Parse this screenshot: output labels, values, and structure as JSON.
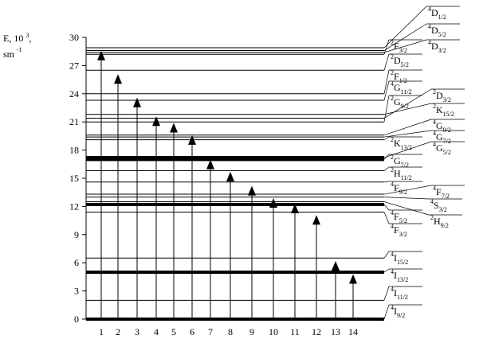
{
  "y_axis": {
    "label": {
      "prefix": "E, 10",
      "exp": "3",
      "sep": ",",
      "unit": "sm",
      "unit_exp": "-1"
    },
    "ylim": [
      0,
      30
    ],
    "yticks": [
      0,
      3,
      6,
      9,
      12,
      15,
      18,
      21,
      24,
      27,
      30
    ]
  },
  "transitions": [
    {
      "label": "1",
      "energy": 28.5
    },
    {
      "label": "2",
      "energy": 26.0
    },
    {
      "label": "3",
      "energy": 23.5
    },
    {
      "label": "4",
      "energy": 21.5
    },
    {
      "label": "5",
      "energy": 20.8
    },
    {
      "label": "6",
      "energy": 19.5
    },
    {
      "label": "7",
      "energy": 16.9
    },
    {
      "label": "8",
      "energy": 15.6
    },
    {
      "label": "9",
      "energy": 14.1
    },
    {
      "label": "10",
      "energy": 12.8
    },
    {
      "label": "11",
      "energy": 12.2
    },
    {
      "label": "12",
      "energy": 11.0
    },
    {
      "label": "13",
      "energy": 6.1
    },
    {
      "label": "14",
      "energy": 4.7
    }
  ],
  "levels": [
    {
      "mult": "4",
      "L": "I",
      "J": "9/2",
      "energy": 0,
      "thick": true
    },
    {
      "mult": "4",
      "L": "I",
      "J": "11/2",
      "energy": 2.0,
      "thick": false
    },
    {
      "mult": "4",
      "L": "I",
      "J": "13/2",
      "energy": 5.0,
      "thick": true
    },
    {
      "mult": "4",
      "L": "I",
      "J": "15/2",
      "energy": 6.5,
      "thick": false
    },
    {
      "mult": "4",
      "L": "F",
      "J": "3/2",
      "energy": 11.4,
      "thick": false
    },
    {
      "mult": "4",
      "L": "F",
      "J": "5/2",
      "energy": 12.2,
      "thick": true
    },
    {
      "mult": "2",
      "L": "H",
      "J": "9/2",
      "energy": 12.5,
      "thick": false
    },
    {
      "mult": "4",
      "L": "S",
      "J": "3/2",
      "energy": 13.0,
      "thick": false
    },
    {
      "mult": "4",
      "L": "F",
      "J": "7/2",
      "energy": 13.3,
      "thick": false
    },
    {
      "mult": "4",
      "L": "F",
      "J": "9/2",
      "energy": 14.6,
      "thick": false
    },
    {
      "mult": "2",
      "L": "H",
      "J": "11/2",
      "energy": 15.8,
      "thick": false
    },
    {
      "mult": "2",
      "L": "G",
      "J": "7/2",
      "energy": 17.0,
      "thick": true
    },
    {
      "mult": "4",
      "L": "G",
      "J": "5/2",
      "energy": 17.2,
      "thick": true
    },
    {
      "mult": "2",
      "L": "K",
      "J": "13/2",
      "energy": 19.1,
      "thick": false
    },
    {
      "mult": "4",
      "L": "G",
      "J": "7/2",
      "energy": 19.4,
      "thick": false
    },
    {
      "mult": "4",
      "L": "G",
      "J": "9/2",
      "energy": 19.6,
      "thick": false
    },
    {
      "mult": "2",
      "L": "G",
      "J": "9/2",
      "energy": 21.0,
      "thick": false
    },
    {
      "mult": "2",
      "L": "D",
      "J": "3/2",
      "energy": 21.4,
      "thick": false
    },
    {
      "mult": "2",
      "L": "K",
      "J": "15/2",
      "energy": 21.8,
      "thick": false
    },
    {
      "mult": "4",
      "L": "G",
      "J": "11/2",
      "energy": 23.3,
      "thick": false
    },
    {
      "mult": "2",
      "L": "F",
      "J": "1/2",
      "energy": 24.0,
      "thick": false
    },
    {
      "mult": "2",
      "L": "D",
      "J": "5/2",
      "energy": 26.5,
      "thick": false
    },
    {
      "mult": "2",
      "L": "F",
      "J": "3/2",
      "energy": 28.2,
      "thick": false
    },
    {
      "mult": "4",
      "L": "D",
      "J": "3/2",
      "energy": 28.4,
      "thick": false
    },
    {
      "mult": "4",
      "L": "D",
      "J": "5/2",
      "energy": 28.6,
      "thick": false
    },
    {
      "mult": "4",
      "L": "D",
      "J": "1/2",
      "energy": 28.9,
      "thick": false
    }
  ]
}
